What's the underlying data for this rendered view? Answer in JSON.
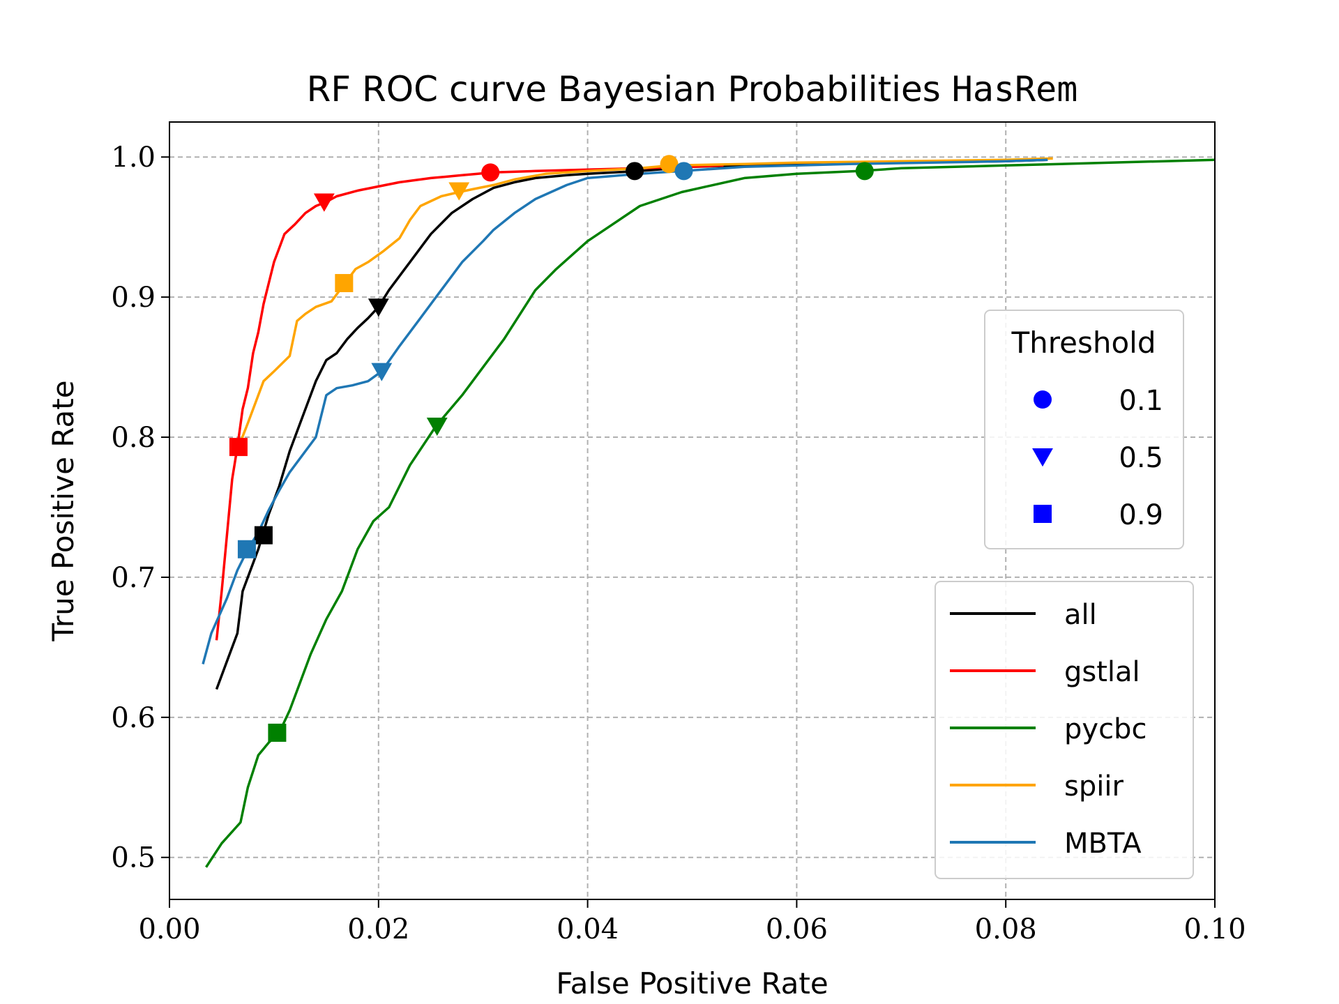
{
  "chart_data": {
    "type": "line",
    "title": "RF ROC curve Bayesian Probabilities ",
    "title_mono": "HasRem",
    "xlabel": "False Positive Rate",
    "ylabel": "True Positive Rate",
    "xlim": [
      0.0,
      0.1
    ],
    "ylim": [
      0.47,
      1.025
    ],
    "xticks": [
      0.0,
      0.02,
      0.04,
      0.06,
      0.08,
      0.1
    ],
    "xtick_labels": [
      "0.00",
      "0.02",
      "0.04",
      "0.06",
      "0.08",
      "0.10"
    ],
    "yticks": [
      0.5,
      0.6,
      0.7,
      0.8,
      0.9,
      1.0
    ],
    "ytick_labels": [
      "0.5",
      "0.6",
      "0.7",
      "0.8",
      "0.9",
      "1.0"
    ],
    "grid": true,
    "series": [
      {
        "name": "all",
        "color": "#000000",
        "x": [
          0.0045,
          0.0055,
          0.0065,
          0.007,
          0.0075,
          0.0085,
          0.0095,
          0.0105,
          0.0115,
          0.012,
          0.013,
          0.014,
          0.015,
          0.016,
          0.017,
          0.018,
          0.019,
          0.02,
          0.021,
          0.023,
          0.025,
          0.027,
          0.029,
          0.031,
          0.033,
          0.035,
          0.038,
          0.04,
          0.045,
          0.05,
          0.06,
          0.07,
          0.08,
          0.084
        ],
        "y": [
          0.62,
          0.64,
          0.66,
          0.69,
          0.7,
          0.72,
          0.745,
          0.765,
          0.79,
          0.8,
          0.82,
          0.84,
          0.855,
          0.86,
          0.87,
          0.878,
          0.885,
          0.893,
          0.905,
          0.925,
          0.945,
          0.96,
          0.97,
          0.978,
          0.982,
          0.985,
          0.987,
          0.988,
          0.99,
          0.993,
          0.995,
          0.996,
          0.997,
          0.998
        ]
      },
      {
        "name": "gstlal",
        "color": "#ff0000",
        "x": [
          0.0045,
          0.005,
          0.0055,
          0.006,
          0.0065,
          0.007,
          0.0075,
          0.008,
          0.0085,
          0.009,
          0.0095,
          0.01,
          0.0105,
          0.011,
          0.012,
          0.013,
          0.014,
          0.015,
          0.016,
          0.018,
          0.02,
          0.022,
          0.025,
          0.028,
          0.031,
          0.035,
          0.04,
          0.045,
          0.05,
          0.053
        ],
        "y": [
          0.655,
          0.69,
          0.73,
          0.77,
          0.793,
          0.82,
          0.835,
          0.86,
          0.875,
          0.895,
          0.91,
          0.925,
          0.935,
          0.945,
          0.952,
          0.96,
          0.965,
          0.968,
          0.972,
          0.976,
          0.979,
          0.982,
          0.985,
          0.987,
          0.989,
          0.99,
          0.991,
          0.992,
          0.993,
          0.994
        ]
      },
      {
        "name": "pycbc",
        "color": "#008000",
        "x": [
          0.0035,
          0.005,
          0.0068,
          0.0075,
          0.0085,
          0.0095,
          0.0105,
          0.0115,
          0.0125,
          0.0135,
          0.015,
          0.0165,
          0.018,
          0.0195,
          0.021,
          0.023,
          0.0255,
          0.028,
          0.03,
          0.032,
          0.035,
          0.037,
          0.04,
          0.042,
          0.045,
          0.047,
          0.049,
          0.052,
          0.055,
          0.06,
          0.066,
          0.07,
          0.08,
          0.09,
          0.1
        ],
        "y": [
          0.493,
          0.51,
          0.525,
          0.55,
          0.573,
          0.582,
          0.589,
          0.605,
          0.625,
          0.645,
          0.67,
          0.69,
          0.72,
          0.74,
          0.75,
          0.78,
          0.808,
          0.83,
          0.85,
          0.87,
          0.905,
          0.92,
          0.94,
          0.95,
          0.965,
          0.97,
          0.975,
          0.98,
          0.985,
          0.988,
          0.99,
          0.992,
          0.994,
          0.996,
          0.998
        ]
      },
      {
        "name": "spiir",
        "color": "#ffa500",
        "x": [
          0.0063,
          0.0075,
          0.009,
          0.01,
          0.0115,
          0.0122,
          0.013,
          0.014,
          0.0155,
          0.0168,
          0.0178,
          0.019,
          0.0205,
          0.022,
          0.023,
          0.024,
          0.026,
          0.0277,
          0.029,
          0.031,
          0.033,
          0.036,
          0.04,
          0.045,
          0.048,
          0.055,
          0.06,
          0.07,
          0.08,
          0.0845
        ],
        "y": [
          0.787,
          0.81,
          0.84,
          0.847,
          0.858,
          0.883,
          0.888,
          0.893,
          0.897,
          0.91,
          0.92,
          0.925,
          0.933,
          0.942,
          0.955,
          0.965,
          0.972,
          0.975,
          0.977,
          0.98,
          0.984,
          0.988,
          0.99,
          0.992,
          0.994,
          0.995,
          0.996,
          0.997,
          0.998,
          0.999
        ]
      },
      {
        "name": "MBTA",
        "color": "#1f77b4",
        "x": [
          0.0032,
          0.004,
          0.0055,
          0.0065,
          0.0075,
          0.0085,
          0.0095,
          0.0105,
          0.0115,
          0.0125,
          0.014,
          0.0145,
          0.015,
          0.016,
          0.0175,
          0.019,
          0.0203,
          0.022,
          0.024,
          0.026,
          0.028,
          0.03,
          0.031,
          0.033,
          0.035,
          0.038,
          0.04,
          0.045,
          0.049,
          0.055,
          0.065,
          0.08,
          0.084
        ],
        "y": [
          0.638,
          0.66,
          0.685,
          0.705,
          0.72,
          0.732,
          0.748,
          0.762,
          0.775,
          0.785,
          0.8,
          0.815,
          0.83,
          0.835,
          0.837,
          0.84,
          0.847,
          0.865,
          0.885,
          0.905,
          0.925,
          0.94,
          0.948,
          0.96,
          0.97,
          0.98,
          0.985,
          0.988,
          0.99,
          0.993,
          0.995,
          0.997,
          0.998
        ]
      }
    ],
    "threshold_markers": [
      {
        "series": "all",
        "marker": "circle",
        "threshold": "0.1",
        "x": 0.0445,
        "y": 0.99
      },
      {
        "series": "all",
        "marker": "triangle",
        "threshold": "0.5",
        "x": 0.02,
        "y": 0.893
      },
      {
        "series": "all",
        "marker": "square",
        "threshold": "0.9",
        "x": 0.009,
        "y": 0.73
      },
      {
        "series": "gstlal",
        "marker": "circle",
        "threshold": "0.1",
        "x": 0.0307,
        "y": 0.989
      },
      {
        "series": "gstlal",
        "marker": "triangle",
        "threshold": "0.5",
        "x": 0.0148,
        "y": 0.968
      },
      {
        "series": "gstlal",
        "marker": "square",
        "threshold": "0.9",
        "x": 0.0066,
        "y": 0.793
      },
      {
        "series": "pycbc",
        "marker": "circle",
        "threshold": "0.1",
        "x": 0.0665,
        "y": 0.99
      },
      {
        "series": "pycbc",
        "marker": "triangle",
        "threshold": "0.5",
        "x": 0.0256,
        "y": 0.808
      },
      {
        "series": "pycbc",
        "marker": "square",
        "threshold": "0.9",
        "x": 0.0103,
        "y": 0.589
      },
      {
        "series": "spiir",
        "marker": "circle",
        "threshold": "0.1",
        "x": 0.0478,
        "y": 0.995
      },
      {
        "series": "spiir",
        "marker": "triangle",
        "threshold": "0.5",
        "x": 0.0277,
        "y": 0.976
      },
      {
        "series": "spiir",
        "marker": "square",
        "threshold": "0.9",
        "x": 0.0167,
        "y": 0.91
      },
      {
        "series": "MBTA",
        "marker": "circle",
        "threshold": "0.1",
        "x": 0.0492,
        "y": 0.99
      },
      {
        "series": "MBTA",
        "marker": "triangle",
        "threshold": "0.5",
        "x": 0.0203,
        "y": 0.847
      },
      {
        "series": "MBTA",
        "marker": "square",
        "threshold": "0.9",
        "x": 0.0074,
        "y": 0.72
      }
    ],
    "threshold_legend": {
      "title": "Threshold",
      "location": "right-middle",
      "color": "#0000ff",
      "entries": [
        {
          "marker": "circle",
          "label": "0.1"
        },
        {
          "marker": "triangle",
          "label": "0.5"
        },
        {
          "marker": "square",
          "label": "0.9"
        }
      ]
    },
    "series_legend": {
      "location": "lower-right",
      "entries": [
        "all",
        "gstlal",
        "pycbc",
        "spiir",
        "MBTA"
      ]
    }
  }
}
